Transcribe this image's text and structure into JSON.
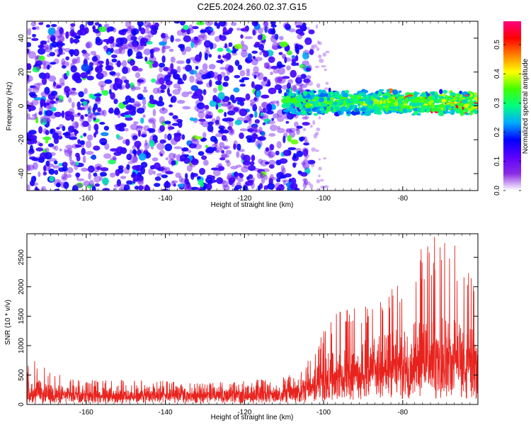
{
  "title": "C2E5.2024.260.02.37.G15",
  "chart_data": [
    {
      "type": "heatmap",
      "xlabel": "Height of straight line (km)",
      "ylabel": "Frequency (Hz)",
      "xlim": [
        -175,
        -61
      ],
      "ylim": [
        -50,
        50
      ],
      "x_ticks": [
        "-160",
        "-140",
        "-120",
        "-100",
        "-80"
      ],
      "y_ticks": [
        "-40",
        "-20",
        "0",
        "20",
        "40"
      ],
      "x_tick_values": [
        -160,
        -140,
        -120,
        -100,
        -80
      ],
      "y_tick_values": [
        -40,
        -20,
        0,
        20,
        40
      ],
      "description_regions": {
        "scattered_noise_extent_km": [
          -175,
          -105
        ],
        "signal_band_start_km": -110,
        "signal_band_center_hz": 2,
        "signal_band_halfwidth_hz": 7
      },
      "colorbar": {
        "label": "Normalized spectral amplitude",
        "range": [
          0,
          0.58
        ],
        "ticks": [
          "0.0",
          "0.1",
          "0.2",
          "0.3",
          "0.4",
          "0.5"
        ],
        "tick_values": [
          0.0,
          0.1,
          0.2,
          0.3,
          0.4,
          0.5
        ],
        "colors": [
          "#ffffff",
          "#8a2be2",
          "#5b00ff",
          "#0000ff",
          "#00aaff",
          "#00ff80",
          "#40ff00",
          "#ffff00",
          "#ff8000",
          "#ff0000",
          "#ff0080"
        ]
      },
      "grid": false
    },
    {
      "type": "line",
      "xlabel": "Height of straight line (km)",
      "ylabel": "SNR (10 * v/v)",
      "xlim": [
        -175,
        -61
      ],
      "ylim": [
        0,
        2900
      ],
      "x_ticks": [
        "-160",
        "-140",
        "-120",
        "-100",
        "-80"
      ],
      "y_ticks": [
        "0",
        "500",
        "1000",
        "1500",
        "2000",
        "2500"
      ],
      "x_tick_values": [
        -160,
        -140,
        -120,
        -100,
        -80
      ],
      "y_tick_values": [
        0,
        500,
        1000,
        1500,
        2000,
        2500
      ],
      "line_color": "#e8231e",
      "envelope": [
        {
          "x": -175,
          "typ": 280,
          "max": 650
        },
        {
          "x": -172,
          "typ": 300,
          "max": 800
        },
        {
          "x": -170,
          "typ": 240,
          "max": 560
        },
        {
          "x": -160,
          "typ": 230,
          "max": 420
        },
        {
          "x": -150,
          "typ": 240,
          "max": 430
        },
        {
          "x": -140,
          "typ": 230,
          "max": 400
        },
        {
          "x": -130,
          "typ": 220,
          "max": 370
        },
        {
          "x": -120,
          "typ": 230,
          "max": 400
        },
        {
          "x": -110,
          "typ": 260,
          "max": 470
        },
        {
          "x": -106,
          "typ": 320,
          "max": 550
        },
        {
          "x": -104,
          "typ": 420,
          "max": 750
        },
        {
          "x": -100,
          "typ": 600,
          "max": 1300
        },
        {
          "x": -96,
          "typ": 700,
          "max": 1600
        },
        {
          "x": -90,
          "typ": 800,
          "max": 1700
        },
        {
          "x": -85,
          "typ": 850,
          "max": 1800
        },
        {
          "x": -80,
          "typ": 950,
          "max": 2200
        },
        {
          "x": -77,
          "typ": 1000,
          "max": 2700
        },
        {
          "x": -74,
          "typ": 1050,
          "max": 2850
        },
        {
          "x": -70,
          "typ": 1100,
          "max": 2900
        },
        {
          "x": -66,
          "typ": 1050,
          "max": 2700
        },
        {
          "x": -61,
          "typ": 900,
          "max": 2300
        }
      ],
      "grid": false
    }
  ]
}
